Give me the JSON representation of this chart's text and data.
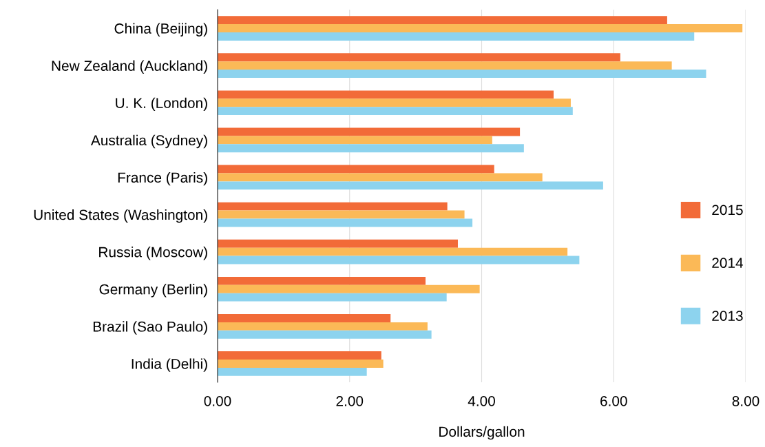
{
  "chart_data": {
    "type": "bar",
    "orientation": "horizontal",
    "xlabel": "Dollars/gallon",
    "categories": [
      "China (Beijing)",
      "New Zealand (Auckland)",
      "U. K. (London)",
      "Australia (Sydney)",
      "France (Paris)",
      "United States (Washington)",
      "Russia (Moscow)",
      "Germany (Berlin)",
      "Brazil (Sao Paulo)",
      "India (Delhi)"
    ],
    "series": [
      {
        "name": "2015",
        "color": "#f26b38",
        "values": [
          6.81,
          6.1,
          5.09,
          4.58,
          4.19,
          3.48,
          3.64,
          3.15,
          2.62,
          2.48
        ]
      },
      {
        "name": "2014",
        "color": "#fbb957",
        "values": [
          7.95,
          6.88,
          5.35,
          4.16,
          4.92,
          3.74,
          5.3,
          3.97,
          3.18,
          2.51
        ]
      },
      {
        "name": "2013",
        "color": "#8dd3ee",
        "values": [
          7.22,
          7.4,
          5.38,
          4.64,
          5.84,
          3.86,
          5.48,
          3.47,
          3.24,
          2.26
        ]
      }
    ],
    "xlim": [
      0,
      8
    ],
    "xticks": [
      {
        "value": 0,
        "label": "0.00"
      },
      {
        "value": 2,
        "label": "2.00"
      },
      {
        "value": 4,
        "label": "4.00"
      },
      {
        "value": 6,
        "label": "6.00"
      },
      {
        "value": 8,
        "label": "8.00"
      }
    ],
    "grid": "x",
    "legend": "right"
  }
}
